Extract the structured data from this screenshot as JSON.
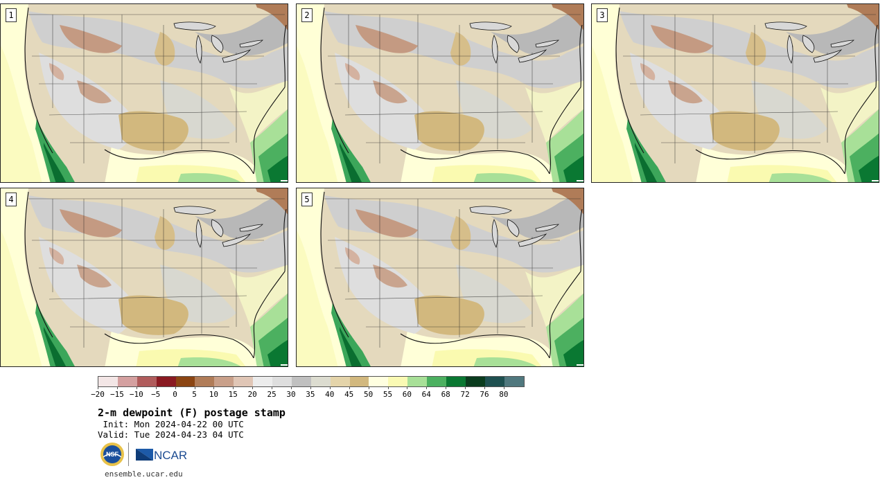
{
  "panels": [
    {
      "label": "1"
    },
    {
      "label": "2"
    },
    {
      "label": "3"
    },
    {
      "label": "4"
    },
    {
      "label": "5"
    }
  ],
  "colorbar": {
    "colors": [
      "#f3e6e6",
      "#d4a0a0",
      "#b05c5c",
      "#8a1a22",
      "#8b4513",
      "#b07c58",
      "#c9a08a",
      "#e0c6b6",
      "#ececec",
      "#dedede",
      "#c0c0c0",
      "#dcdcd0",
      "#e4d4aa",
      "#d2b87e",
      "#ffffe0",
      "#fafab4",
      "#a8e098",
      "#4cb060",
      "#0a7832",
      "#0a3c1e",
      "#1e5050",
      "#50787e"
    ],
    "ticks": [
      "−20",
      "−15",
      "−10",
      "−5",
      "0",
      "5",
      "10",
      "15",
      "20",
      "25",
      "30",
      "35",
      "40",
      "45",
      "50",
      "55",
      "60",
      "64",
      "68",
      "72",
      "76",
      "80"
    ]
  },
  "title": "2-m dewpoint (F) postage stamp",
  "init": " Init: Mon 2024-04-22 00 UTC",
  "valid": "Valid: Tue 2024-04-23 04 UTC",
  "logos": {
    "nsf": "NSF",
    "ncar": "NCAR"
  },
  "url": "ensemble.ucar.edu"
}
